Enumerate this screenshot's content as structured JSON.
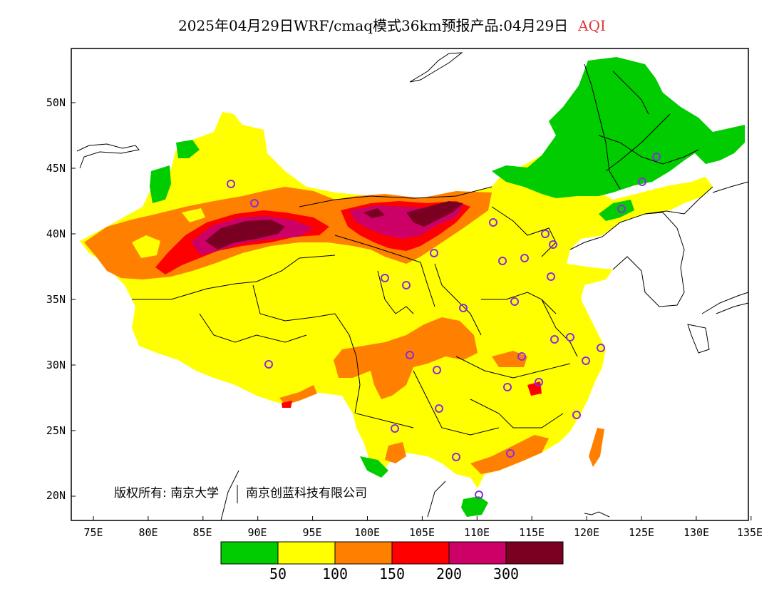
{
  "title": {
    "main": "2025年04月29日WRF/cmaq模式36km预报产品:04月29日",
    "variable": "AQI",
    "variable_color": "#e03a3a"
  },
  "axes": {
    "x_ticks": [
      "75E",
      "80E",
      "85E",
      "90E",
      "95E",
      "100E",
      "105E",
      "110E",
      "115E",
      "120E",
      "125E",
      "130E",
      "135E"
    ],
    "y_ticks": [
      "50N",
      "45N",
      "40N",
      "35N",
      "30N",
      "25N",
      "20N"
    ]
  },
  "copyright": {
    "left": "版权所有: 南京大学",
    "right": "南京创蓝科技有限公司"
  },
  "legend": {
    "thresholds": [
      "50",
      "100",
      "150",
      "200",
      "300"
    ],
    "colors": [
      "#00cc00",
      "#ffff00",
      "#ff8000",
      "#ff0000",
      "#cc0066",
      "#7a0022"
    ]
  },
  "colors": {
    "good": "#00cc00",
    "moderate": "#ffff00",
    "unhealthy_sensitive": "#ff8000",
    "unhealthy": "#ff0000",
    "very_unhealthy": "#cc0066",
    "hazardous": "#7a0022",
    "station_marker": "#8a2be2"
  }
}
